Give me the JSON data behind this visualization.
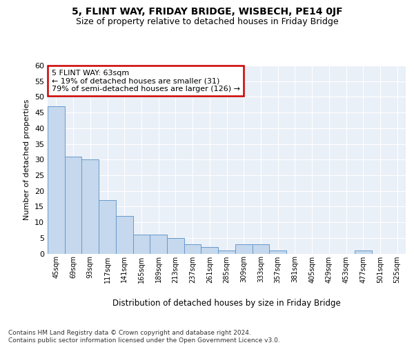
{
  "title": "5, FLINT WAY, FRIDAY BRIDGE, WISBECH, PE14 0JF",
  "subtitle": "Size of property relative to detached houses in Friday Bridge",
  "xlabel": "Distribution of detached houses by size in Friday Bridge",
  "ylabel": "Number of detached properties",
  "categories": [
    "45sqm",
    "69sqm",
    "93sqm",
    "117sqm",
    "141sqm",
    "165sqm",
    "189sqm",
    "213sqm",
    "237sqm",
    "261sqm",
    "285sqm",
    "309sqm",
    "333sqm",
    "357sqm",
    "381sqm",
    "405sqm",
    "429sqm",
    "453sqm",
    "477sqm",
    "501sqm",
    "525sqm"
  ],
  "values": [
    47,
    31,
    30,
    17,
    12,
    6,
    6,
    5,
    3,
    2,
    1,
    3,
    3,
    1,
    0,
    0,
    0,
    0,
    1,
    0,
    0
  ],
  "bar_color": "#c5d8ed",
  "bar_edge_color": "#6699cc",
  "background_color": "#ffffff",
  "plot_bg_color": "#eaf0f8",
  "grid_color": "#ffffff",
  "annotation_text": "5 FLINT WAY: 63sqm\n← 19% of detached houses are smaller (31)\n79% of semi-detached houses are larger (126) →",
  "annotation_box_color": "#ffffff",
  "annotation_box_edge_color": "#cc0000",
  "ylim": [
    0,
    60
  ],
  "yticks": [
    0,
    5,
    10,
    15,
    20,
    25,
    30,
    35,
    40,
    45,
    50,
    55,
    60
  ],
  "footer": "Contains HM Land Registry data © Crown copyright and database right 2024.\nContains public sector information licensed under the Open Government Licence v3.0.",
  "title_fontsize": 10,
  "subtitle_fontsize": 9,
  "ylabel_fontsize": 8,
  "ytick_fontsize": 8,
  "xtick_fontsize": 7,
  "ann_fontsize": 8,
  "xlabel_fontsize": 8.5,
  "footer_fontsize": 6.5
}
